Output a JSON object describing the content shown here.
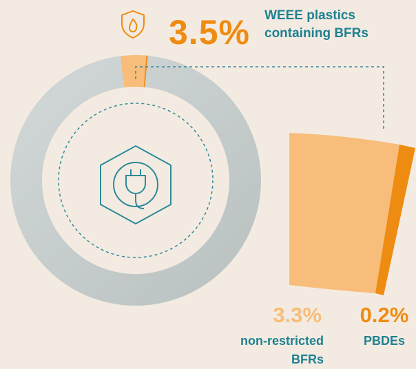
{
  "chart_data": {
    "type": "donut",
    "total_label": "3.5%",
    "caption": "WEEE plastics containing BFRs",
    "total": 3.5,
    "categories": [
      "non-restricted BFRs",
      "PBDEs"
    ],
    "values": [
      3.3,
      0.2
    ],
    "value_labels": [
      "3.3%",
      "0.2%"
    ],
    "colors": [
      "#f8bd7a",
      "#ee8c12"
    ],
    "rest_color": "#c7cdcd"
  }
}
